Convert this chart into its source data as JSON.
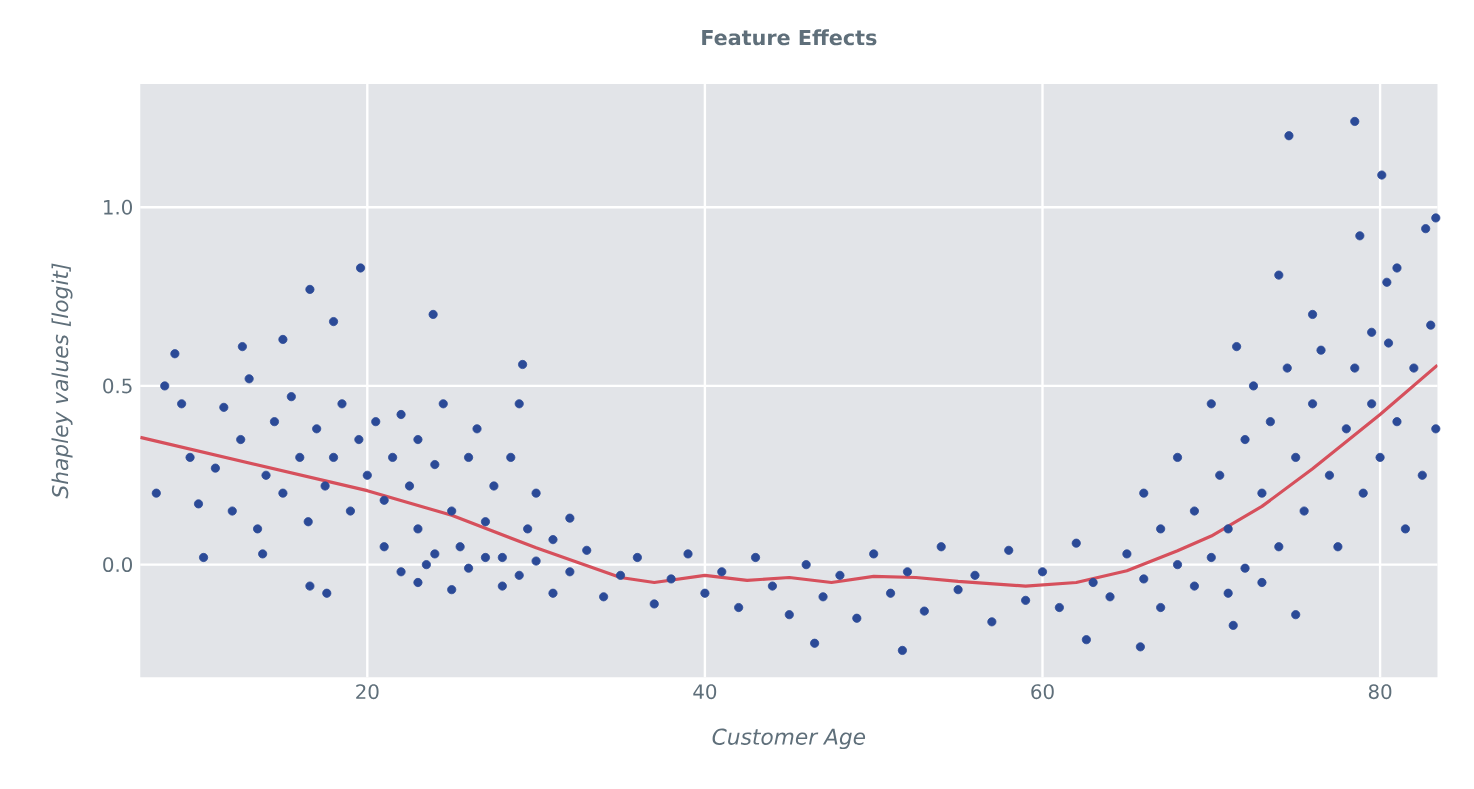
{
  "chart_data": {
    "type": "scatter",
    "title": "Feature Effects",
    "xlabel": "Customer Age",
    "ylabel": "Shapley values [logit]",
    "xlim": [
      6.55,
      83.4
    ],
    "ylim": [
      -0.315,
      1.345
    ],
    "xticks": [
      20,
      40,
      60,
      80
    ],
    "yticks": [
      {
        "value": 0,
        "label": "0.0"
      },
      {
        "value": 0.5,
        "label": "0.5"
      },
      {
        "value": 1,
        "label": "1.0"
      }
    ],
    "grid": true,
    "series": [
      {
        "marker": "circle",
        "color": "#2b4a97",
        "x": [
          7.5,
          8,
          9,
          9.5,
          10,
          11,
          11.5,
          12,
          12.5,
          13,
          13.5,
          14,
          14.5,
          15,
          15.5,
          16,
          16.5,
          17,
          17.5,
          18,
          18.5,
          19,
          19.5,
          20,
          20.5,
          21,
          21,
          21.5,
          22,
          22.5,
          23,
          23,
          23.5,
          24,
          24.5,
          25,
          25.5,
          26,
          26.5,
          27,
          27.5,
          28,
          28.5,
          29,
          29.5,
          30,
          31,
          32,
          22,
          23,
          24,
          25,
          26,
          27,
          28,
          29,
          30,
          31,
          32,
          33,
          34,
          35,
          36,
          37,
          38,
          39,
          40,
          41,
          42,
          43,
          44,
          45,
          46,
          47,
          48,
          49,
          50,
          51,
          52,
          53,
          54,
          55,
          56,
          57,
          58,
          59,
          60,
          61,
          62,
          63,
          64,
          65,
          66,
          67,
          68,
          69,
          70,
          71,
          72,
          73,
          66,
          67,
          68,
          69,
          70,
          70.5,
          71,
          72,
          72.5,
          73,
          73.5,
          74,
          74.5,
          75,
          75.5,
          76,
          76.5,
          77,
          77.5,
          78,
          78.5,
          79,
          79.5,
          80,
          80.5,
          81,
          81.5,
          82,
          82.5,
          83,
          83.3,
          74.6,
          78.5,
          80.1,
          19.6,
          16.6,
          23.9,
          18,
          8.6,
          29.2,
          81,
          82.7,
          83.3,
          80.4,
          74,
          78.8,
          79.5,
          71.5,
          76,
          12.6,
          15,
          46.5,
          51.7,
          62.6,
          65.8,
          17.6,
          16.6,
          10.3,
          13.8,
          75,
          71.3
        ],
        "values": [
          0.2,
          0.5,
          0.45,
          0.3,
          0.17,
          0.27,
          0.44,
          0.15,
          0.35,
          0.52,
          0.1,
          0.25,
          0.4,
          0.2,
          0.47,
          0.3,
          0.12,
          0.38,
          0.22,
          0.3,
          0.45,
          0.15,
          0.35,
          0.25,
          0.4,
          0.18,
          0.05,
          0.3,
          0.42,
          0.22,
          0.1,
          0.35,
          0.0,
          0.28,
          0.45,
          0.15,
          0.05,
          0.3,
          0.38,
          0.12,
          0.22,
          0.02,
          0.3,
          0.45,
          0.1,
          0.2,
          0.07,
          0.13,
          -0.02,
          -0.05,
          0.03,
          -0.07,
          -0.01,
          0.02,
          -0.06,
          -0.03,
          0.01,
          -0.08,
          -0.02,
          0.04,
          -0.09,
          -0.03,
          0.02,
          -0.11,
          -0.04,
          0.03,
          -0.08,
          -0.02,
          -0.12,
          0.02,
          -0.06,
          -0.14,
          0.0,
          -0.09,
          -0.03,
          -0.15,
          0.03,
          -0.08,
          -0.02,
          -0.13,
          0.05,
          -0.07,
          -0.03,
          -0.16,
          0.04,
          -0.1,
          -0.02,
          -0.12,
          0.06,
          -0.05,
          -0.09,
          0.03,
          -0.04,
          -0.12,
          0.0,
          -0.06,
          0.02,
          -0.08,
          -0.01,
          -0.05,
          0.2,
          0.1,
          0.3,
          0.15,
          0.45,
          0.25,
          0.1,
          0.35,
          0.5,
          0.2,
          0.4,
          0.05,
          0.55,
          0.3,
          0.15,
          0.45,
          0.6,
          0.25,
          0.05,
          0.38,
          0.55,
          0.2,
          0.45,
          0.3,
          0.62,
          0.4,
          0.1,
          0.55,
          0.25,
          0.67,
          0.38,
          1.2,
          1.24,
          1.09,
          0.83,
          0.77,
          0.7,
          0.68,
          0.59,
          0.56,
          0.83,
          0.94,
          0.97,
          0.79,
          0.81,
          0.92,
          0.65,
          0.61,
          0.7,
          0.61,
          0.63,
          -0.22,
          -0.24,
          -0.21,
          -0.23,
          -0.08,
          -0.06,
          0.02,
          0.03,
          -0.14,
          -0.17
        ]
      },
      {
        "type": "line",
        "color": "#d6505c",
        "marker": "none",
        "line_style": "solid",
        "x": [
          6.55,
          20,
          25,
          30,
          35,
          37,
          40,
          42.5,
          45,
          47.5,
          50,
          52.5,
          55,
          59,
          62,
          65,
          68,
          70,
          73,
          76,
          80,
          83.4
        ],
        "values": [
          0.356,
          0.207,
          0.138,
          0.047,
          -0.036,
          -0.05,
          -0.03,
          -0.044,
          -0.036,
          -0.05,
          -0.033,
          -0.036,
          -0.047,
          -0.06,
          -0.05,
          -0.017,
          0.039,
          0.08,
          0.163,
          0.268,
          0.42,
          0.558
        ]
      }
    ]
  }
}
